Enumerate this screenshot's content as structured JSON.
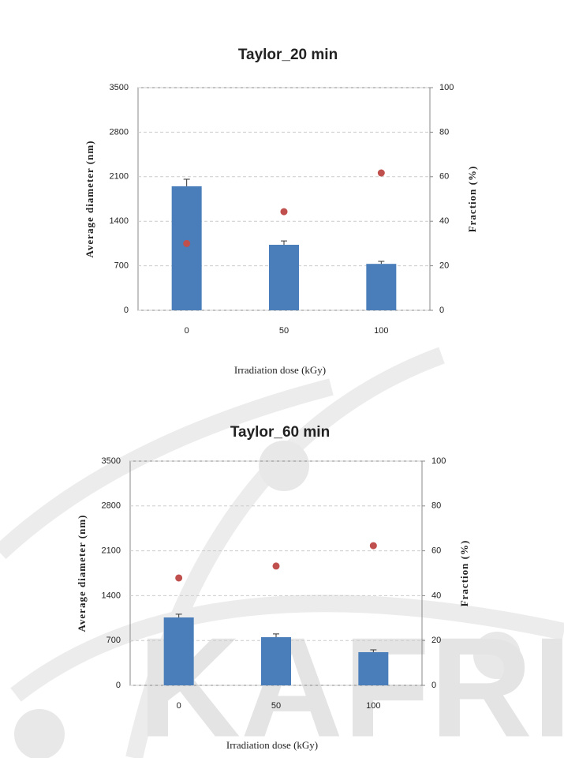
{
  "watermark": "KAFRI",
  "chart_data": [
    {
      "type": "bar",
      "title": "Taylor_20 min",
      "x_label": "Irradiation dose (kGy)",
      "y_label": "Average diameter (nm)",
      "y2_label": "Fraction (%)",
      "categories": [
        "0",
        "50",
        "100"
      ],
      "series": [
        {
          "type": "bar",
          "color": "#4a7ebb",
          "values": [
            1950,
            1030,
            730
          ],
          "errors": [
            110,
            60,
            40
          ]
        },
        {
          "type": "scatter",
          "axis": "y2",
          "color": "#c0504d",
          "values": [
            30,
            44.3,
            61.7
          ]
        }
      ],
      "ylim": [
        0,
        3500
      ],
      "yticks": [
        0,
        700,
        1400,
        2100,
        2800,
        3500
      ],
      "y2lim": [
        0,
        100
      ],
      "y2ticks": [
        0,
        20,
        40,
        60,
        80,
        100
      ],
      "grid": true
    },
    {
      "type": "bar",
      "title": "Taylor_60 min",
      "x_label": "Irradiation dose (kGy)",
      "y_label": "Average diameter (nm)",
      "y2_label": "Fraction (%)",
      "categories": [
        "0",
        "50",
        "100"
      ],
      "series": [
        {
          "type": "bar",
          "color": "#4a7ebb",
          "values": [
            1060,
            752,
            518
          ],
          "errors": [
            50,
            50,
            37
          ]
        },
        {
          "type": "scatter",
          "axis": "y2",
          "color": "#c0504d",
          "values": [
            47.9,
            53.2,
            62.3
          ]
        }
      ],
      "ylim": [
        0,
        3500
      ],
      "yticks": [
        0,
        700,
        1400,
        2100,
        2800,
        3500
      ],
      "y2lim": [
        0,
        100
      ],
      "y2ticks": [
        0,
        20,
        40,
        60,
        80,
        100
      ],
      "grid": true
    }
  ]
}
